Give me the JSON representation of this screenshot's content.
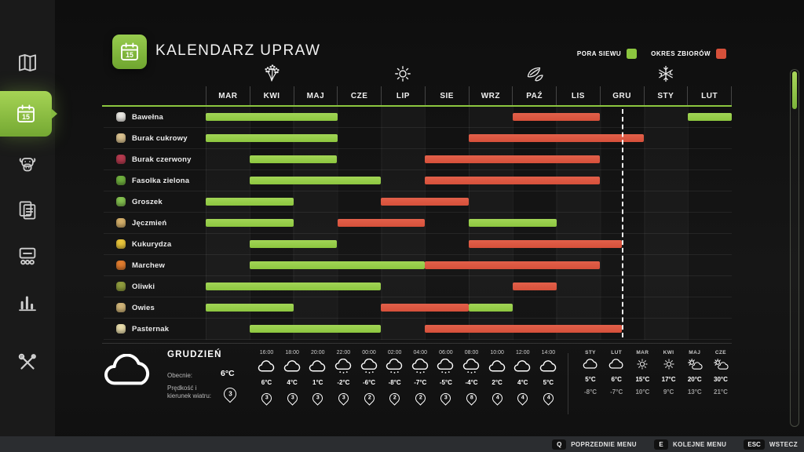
{
  "app": {
    "title": "KALENDARZ UPRAW"
  },
  "legend": {
    "sowing_label": "PORA SIEWU",
    "harvest_label": "OKRES ZBIORÓW",
    "sowing_color": "#8cc63f",
    "harvest_color": "#d6503a"
  },
  "sidebar": {
    "items": [
      {
        "id": "map",
        "icon": "map-icon",
        "active": false
      },
      {
        "id": "calendar",
        "icon": "calendar-icon",
        "active": true
      },
      {
        "id": "animals",
        "icon": "animal-icon",
        "active": false
      },
      {
        "id": "contracts",
        "icon": "documents-icon",
        "active": false
      },
      {
        "id": "production",
        "icon": "production-icon",
        "active": false
      },
      {
        "id": "statistics",
        "icon": "bar-chart-icon",
        "active": false
      },
      {
        "id": "settings",
        "icon": "tools-icon",
        "active": false
      }
    ]
  },
  "calendar": {
    "months": [
      "MAR",
      "KWI",
      "MAJ",
      "CZE",
      "LIP",
      "SIE",
      "WRZ",
      "PAŹ",
      "LIS",
      "GRU",
      "STY",
      "LUT"
    ],
    "seasons": [
      {
        "icon": "spring-flowers-icon",
        "center_month": 1.5
      },
      {
        "icon": "summer-sun-icon",
        "center_month": 4.5
      },
      {
        "icon": "autumn-leaves-icon",
        "center_month": 7.5
      },
      {
        "icon": "winter-snowflake-icon",
        "center_month": 10.5
      }
    ],
    "current_date_month": 9.5,
    "crops": [
      {
        "name": "Bawełna",
        "color": "#e9e7e2",
        "bars": [
          {
            "type": "sow",
            "start": 0,
            "end": 3
          },
          {
            "type": "harvest",
            "start": 7,
            "end": 9
          },
          {
            "type": "sow",
            "start": 11,
            "end": 12
          }
        ]
      },
      {
        "name": "Burak cukrowy",
        "color": "#d9c18f",
        "bars": [
          {
            "type": "sow",
            "start": 0,
            "end": 3
          },
          {
            "type": "harvest",
            "start": 6,
            "end": 10
          }
        ]
      },
      {
        "name": "Burak czerwony",
        "color": "#b43a4e",
        "bars": [
          {
            "type": "sow",
            "start": 1,
            "end": 3
          },
          {
            "type": "harvest",
            "start": 5,
            "end": 9
          }
        ]
      },
      {
        "name": "Fasolka zielona",
        "color": "#6fae3e",
        "bars": [
          {
            "type": "sow",
            "start": 1,
            "end": 4
          },
          {
            "type": "harvest",
            "start": 5,
            "end": 9
          }
        ]
      },
      {
        "name": "Groszek",
        "color": "#83bf4f",
        "bars": [
          {
            "type": "sow",
            "start": 0,
            "end": 2
          },
          {
            "type": "harvest",
            "start": 4,
            "end": 6
          }
        ]
      },
      {
        "name": "Jęczmień",
        "color": "#d4af6a",
        "bars": [
          {
            "type": "sow",
            "start": 0,
            "end": 2
          },
          {
            "type": "harvest",
            "start": 3,
            "end": 5
          },
          {
            "type": "sow",
            "start": 6,
            "end": 8
          }
        ]
      },
      {
        "name": "Kukurydza",
        "color": "#e9c53b",
        "bars": [
          {
            "type": "sow",
            "start": 1,
            "end": 3
          },
          {
            "type": "harvest",
            "start": 6,
            "end": 9.5
          }
        ]
      },
      {
        "name": "Marchew",
        "color": "#e07c2f",
        "bars": [
          {
            "type": "sow",
            "start": 1,
            "end": 5
          },
          {
            "type": "harvest",
            "start": 5,
            "end": 9
          }
        ]
      },
      {
        "name": "Oliwki",
        "color": "#8f9c3e",
        "bars": [
          {
            "type": "sow",
            "start": 0,
            "end": 4
          },
          {
            "type": "harvest",
            "start": 7,
            "end": 8
          }
        ]
      },
      {
        "name": "Owies",
        "color": "#cfb478",
        "bars": [
          {
            "type": "sow",
            "start": 0,
            "end": 2
          },
          {
            "type": "harvest",
            "start": 4,
            "end": 6
          },
          {
            "type": "sow",
            "start": 6,
            "end": 7
          }
        ]
      },
      {
        "name": "Pasternak",
        "color": "#e8dcab",
        "bars": [
          {
            "type": "sow",
            "start": 1,
            "end": 4
          },
          {
            "type": "harvest",
            "start": 5,
            "end": 9.5
          }
        ]
      }
    ]
  },
  "weather": {
    "month_name": "GRUDZIEŃ",
    "current_label": "Obecnie:",
    "current_temp": "6°C",
    "wind_label": "Prędkość i kierunek wiatru:",
    "wind_value": "3",
    "hourly": [
      {
        "time": "16:00",
        "icon": "cloud",
        "temp": "6°C",
        "wind": "3"
      },
      {
        "time": "18:00",
        "icon": "cloud",
        "temp": "4°C",
        "wind": "3"
      },
      {
        "time": "20:00",
        "icon": "cloud",
        "temp": "1°C",
        "wind": "3"
      },
      {
        "time": "22:00",
        "icon": "snow-cloud",
        "temp": "-2°C",
        "wind": "3"
      },
      {
        "time": "00:00",
        "icon": "snow-cloud",
        "temp": "-6°C",
        "wind": "2"
      },
      {
        "time": "02:00",
        "icon": "snow-cloud",
        "temp": "-8°C",
        "wind": "2"
      },
      {
        "time": "04:00",
        "icon": "snow-cloud",
        "temp": "-7°C",
        "wind": "2"
      },
      {
        "time": "06:00",
        "icon": "snow-cloud",
        "temp": "-5°C",
        "wind": "3"
      },
      {
        "time": "08:00",
        "icon": "snow-cloud",
        "temp": "-4°C",
        "wind": "8"
      },
      {
        "time": "10:00",
        "icon": "cloud",
        "temp": "2°C",
        "wind": "4"
      },
      {
        "time": "12:00",
        "icon": "cloud",
        "temp": "4°C",
        "wind": "4"
      },
      {
        "time": "14:00",
        "icon": "cloud",
        "temp": "5°C",
        "wind": "4"
      }
    ],
    "monthly": [
      {
        "month": "STY",
        "icon": "cloud",
        "high": "5°C",
        "low": "-8°C"
      },
      {
        "month": "LUT",
        "icon": "cloud",
        "high": "6°C",
        "low": "-7°C"
      },
      {
        "month": "MAR",
        "icon": "sun",
        "high": "15°C",
        "low": "10°C"
      },
      {
        "month": "KWI",
        "icon": "sun",
        "high": "17°C",
        "low": "9°C"
      },
      {
        "month": "MAJ",
        "icon": "partly-cloudy",
        "high": "20°C",
        "low": "13°C"
      },
      {
        "month": "CZE",
        "icon": "partly-cloudy",
        "high": "30°C",
        "low": "21°C"
      }
    ]
  },
  "bottom_bar": {
    "hints": [
      {
        "key": "Q",
        "label": "POPRZEDNIE MENU"
      },
      {
        "key": "E",
        "label": "KOLEJNE MENU"
      },
      {
        "key": "ESC",
        "label": "WSTECZ"
      }
    ]
  }
}
